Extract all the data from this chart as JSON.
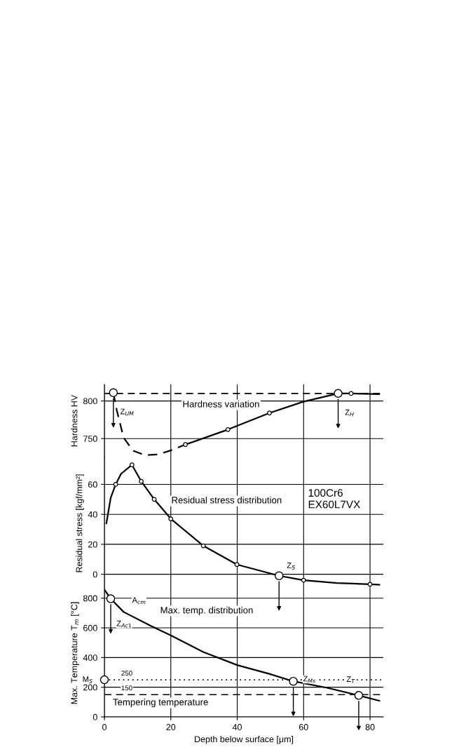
{
  "chart_data": [
    {
      "type": "line",
      "ylabel": "Hardness HV",
      "xlim": [
        0,
        84
      ],
      "xticks": [
        0,
        20,
        40,
        60,
        80
      ],
      "ylim": [
        725,
        822
      ],
      "yticks": [
        750,
        800
      ],
      "tick_labels": "y",
      "grid": true,
      "series": [
        {
          "line_style": "dashed",
          "color": "#000000",
          "x": [
            2.7,
            3.7,
            5.8,
            8.6,
            12.1,
            16.3,
            19.8,
            24.4
          ],
          "values": [
            811,
            788,
            751,
            734,
            728,
            729,
            734,
            742
          ]
        },
        {
          "line_style": "solid",
          "color": "#000000",
          "x": [
            24.4,
            37.2,
            49.7,
            59.9,
            70.4,
            74.3,
            82.7
          ],
          "values": [
            742,
            762,
            784,
            799,
            810,
            810,
            809
          ]
        },
        {
          "type": "scatter",
          "marker": "circle",
          "color": "#000000",
          "x": [
            24.4,
            37.2,
            49.7,
            74.3
          ],
          "values": [
            742,
            762,
            784,
            810
          ]
        }
      ],
      "ref_lines": [
        {
          "axis": "y",
          "value": 810,
          "line_style": "dashed"
        }
      ],
      "annotations": [
        "Hardness variation",
        {
          "text": "Z$_{UM}$",
          "x": 2.7,
          "y": 811
        },
        {
          "text": "Z$_{H}$",
          "x": 70.4,
          "y": 810
        }
      ]
    },
    {
      "type": "line",
      "ylabel": "Residual stress [kgf/mm²]",
      "xlim": [
        0,
        84
      ],
      "xticks": [
        0,
        20,
        40,
        60,
        80
      ],
      "ylim": [
        -10,
        78
      ],
      "yticks": [
        0,
        20,
        40,
        60
      ],
      "tick_labels": "y",
      "grid": true,
      "series": [
        {
          "line_style": "solid",
          "color": "#000000",
          "x": [
            0.6,
            1.9,
            3.4,
            5,
            8.3,
            11.1,
            15,
            20,
            29.8,
            39.9,
            52.6,
            60,
            70,
            80,
            82.8
          ],
          "values": [
            34,
            51,
            60,
            67,
            73,
            62,
            50,
            37,
            19,
            6.5,
            -1,
            -4,
            -5.8,
            -6.7,
            -7
          ]
        },
        {
          "type": "scatter",
          "marker": "circle",
          "color": "#000000",
          "x": [
            3.4,
            8.3,
            11.1,
            15,
            20,
            29.8,
            39.9,
            60,
            80
          ],
          "values": [
            60,
            73,
            62,
            50,
            37,
            19,
            6.5,
            -4,
            -6.7
          ]
        }
      ],
      "annotations": [
        "Residual stress distribution",
        "100Cr6\nEX60L7VX",
        {
          "text": "Z$_{S}$",
          "x": 52.6,
          "y": -1
        }
      ]
    },
    {
      "type": "line",
      "xlabel": "Depth below surface [μm]",
      "ylabel": "Max. Temperature T$_{m}$ [°C]",
      "xlim": [
        0,
        84
      ],
      "xticks": [
        0,
        20,
        40,
        60,
        80
      ],
      "ylim": [
        0,
        860
      ],
      "yticks": [
        0,
        200,
        400,
        600,
        800
      ],
      "grid": true,
      "series": [
        {
          "line_style": "solid",
          "color": "#000000",
          "x": [
            0.2,
            1.9,
            5.8,
            14.1,
            20,
            29.8,
            40,
            49.5,
            56.9,
            67.1,
            76.6,
            82.8
          ],
          "values": [
            851,
            796,
            707,
            612,
            549,
            437,
            349,
            291,
            240,
            196,
            145,
            109
          ]
        }
      ],
      "ref_lines": [
        {
          "axis": "y",
          "value": 250,
          "label": "250",
          "line_style": "dotted"
        },
        {
          "axis": "y",
          "value": 150,
          "label": "150",
          "line_style": "dashed"
        }
      ],
      "annotations": [
        "Max. temp. distribution",
        "Tempering temperature",
        {
          "text": "A$_{cm}$",
          "x": 1.9,
          "y": 796
        },
        {
          "text": "Z$_{Ac1}$",
          "x": 1.9,
          "y": 796
        },
        {
          "text": "M$_{S}$",
          "x": 0,
          "y": 250
        },
        {
          "text": "Z$_{Ms}$",
          "x": 56.9,
          "y": 240
        },
        {
          "text": "Z$_{T}$",
          "x": 76.6,
          "y": 145
        }
      ]
    }
  ]
}
